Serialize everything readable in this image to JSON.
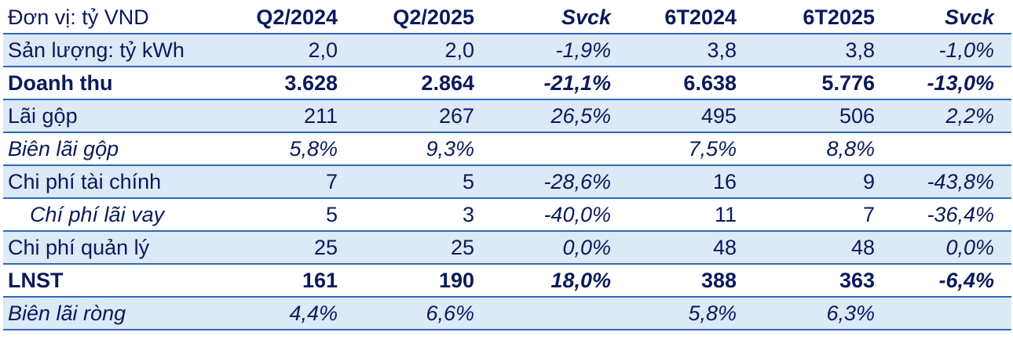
{
  "table": {
    "header": {
      "label": "Đơn vị: tỷ VND",
      "cols": [
        "Q2/2024",
        "Q2/2025",
        "Svck",
        "6T2024",
        "6T2025",
        "Svck"
      ]
    },
    "rows": [
      {
        "label": "Sản lượng: tỷ kWh",
        "values": [
          "2,0",
          "2,0",
          "-1,9%",
          "3,8",
          "3,8",
          "-1,0%"
        ]
      },
      {
        "label": "Doanh thu",
        "values": [
          "3.628",
          "2.864",
          "-21,1%",
          "6.638",
          "5.776",
          "-13,0%"
        ]
      },
      {
        "label": "Lãi gộp",
        "values": [
          "211",
          "267",
          "26,5%",
          "495",
          "506",
          "2,2%"
        ]
      },
      {
        "label": "Biên lãi gộp",
        "values": [
          "5,8%",
          "9,3%",
          "",
          "7,5%",
          "8,8%",
          ""
        ]
      },
      {
        "label": "Chi phí tài chính",
        "values": [
          "7",
          "5",
          "-28,6%",
          "16",
          "9",
          "-43,8%"
        ]
      },
      {
        "label": "Chí phí lãi vay",
        "values": [
          "5",
          "3",
          "-40,0%",
          "11",
          "7",
          "-36,4%"
        ]
      },
      {
        "label": "Chi phí quản lý",
        "values": [
          "25",
          "25",
          "0,0%",
          "48",
          "48",
          "0,0%"
        ]
      },
      {
        "label": "LNST",
        "values": [
          "161",
          "190",
          "18,0%",
          "388",
          "363",
          "-6,4%"
        ]
      },
      {
        "label": "Biên lãi ròng",
        "values": [
          "4,4%",
          "6,6%",
          "",
          "5,8%",
          "6,3%",
          ""
        ]
      }
    ]
  }
}
